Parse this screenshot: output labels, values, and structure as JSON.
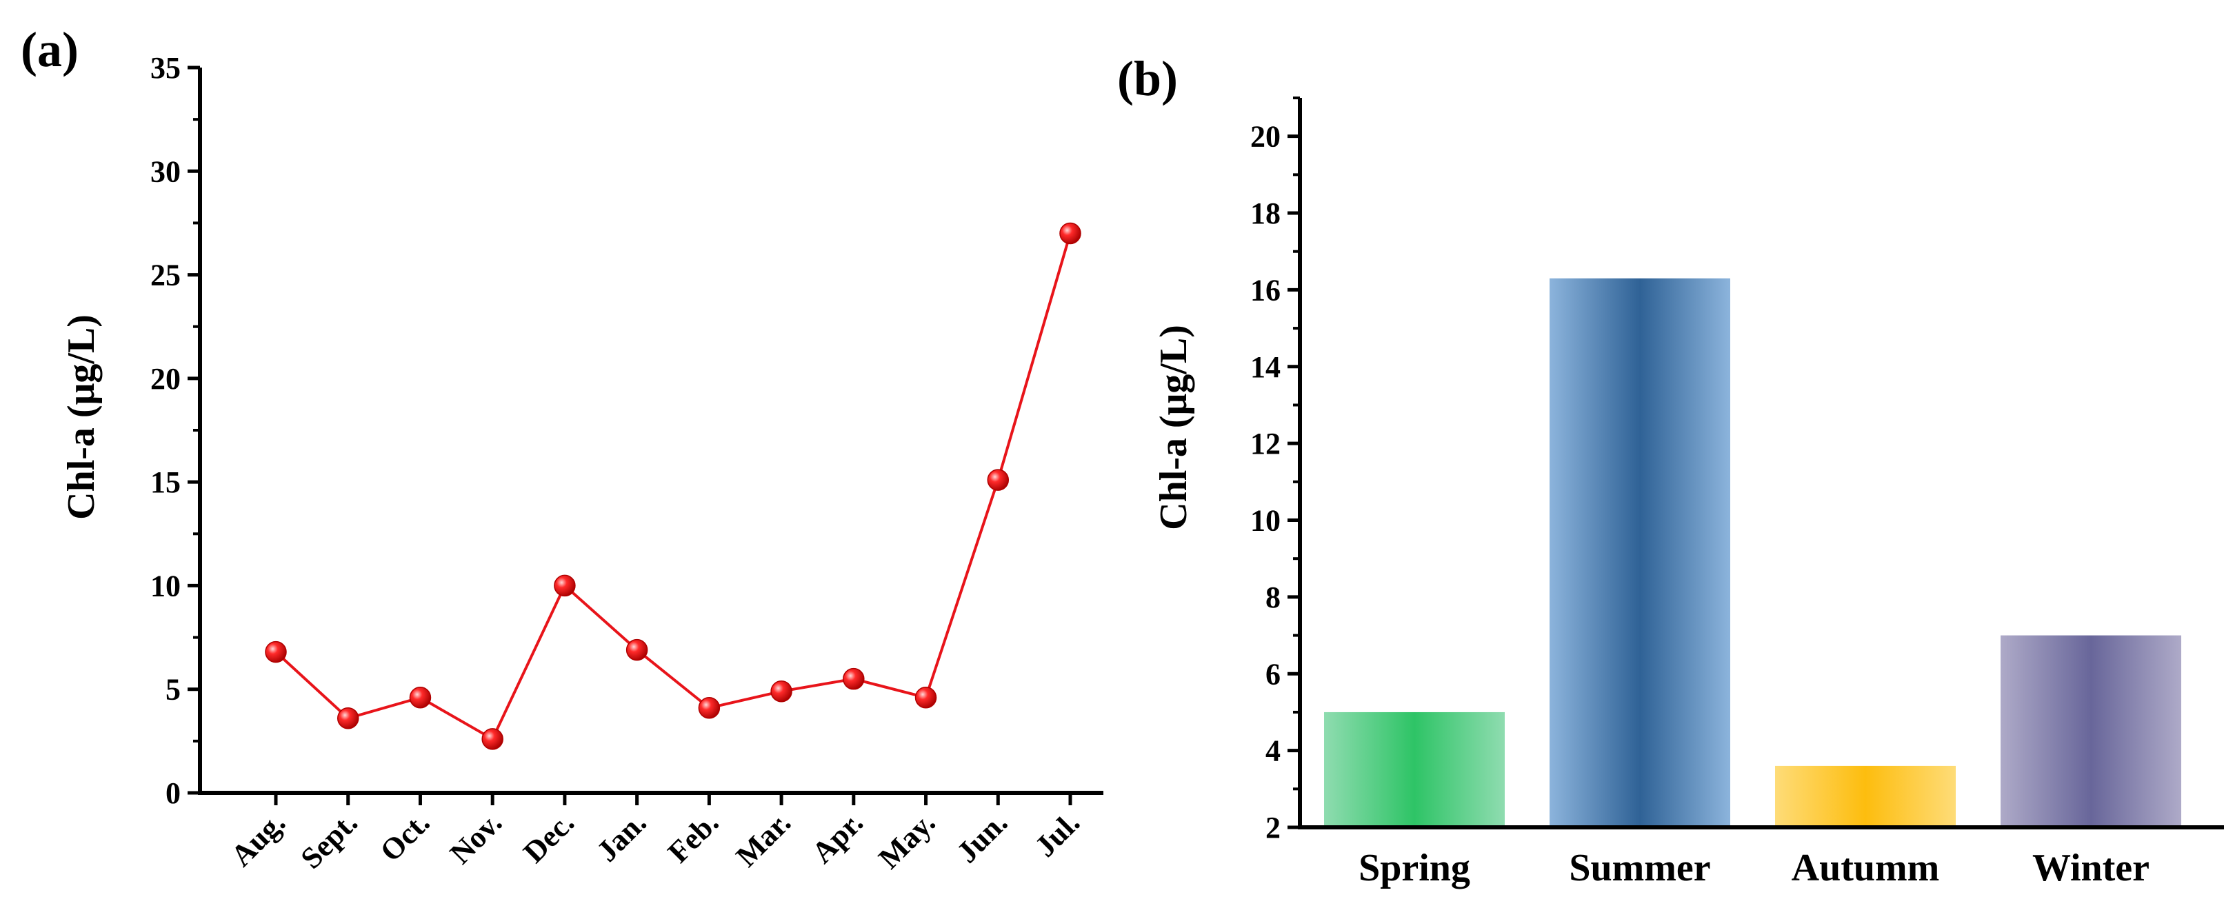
{
  "chart_data": [
    {
      "type": "line",
      "panel_label": "(a)",
      "title": "",
      "xlabel": "",
      "ylabel": "Chl-a (μg/L)",
      "ylim": [
        0,
        35
      ],
      "yticks": [
        "0",
        "5",
        "10",
        "15",
        "20",
        "25",
        "30",
        "35"
      ],
      "yticks_values": [
        0,
        5,
        10,
        15,
        20,
        25,
        30,
        35
      ],
      "categories": [
        "Aug.",
        "Sept.",
        "Oct.",
        "Nov.",
        "Dec.",
        "Jan.",
        "Feb.",
        "Mar.",
        "Apr.",
        "May.",
        "Jun.",
        "Jul."
      ],
      "values": [
        6.8,
        3.6,
        4.6,
        2.6,
        10.0,
        6.9,
        4.1,
        4.9,
        5.5,
        4.6,
        15.1,
        27.0
      ],
      "line_color": "#e8141a",
      "marker_color": "#e8141a",
      "grid": false,
      "legend": "none"
    },
    {
      "type": "bar",
      "panel_label": "(b)",
      "title": "",
      "xlabel": "",
      "ylabel": "Chl-a (μg/L)",
      "ylim": [
        2,
        21
      ],
      "yticks": [
        "2",
        "4",
        "6",
        "8",
        "10",
        "12",
        "14",
        "16",
        "18",
        "20"
      ],
      "yticks_values": [
        2,
        4,
        6,
        8,
        10,
        12,
        14,
        16,
        18,
        20
      ],
      "categories": [
        "Spring",
        "Summer",
        "Autumm",
        "Winter"
      ],
      "values": [
        5.0,
        16.3,
        3.6,
        7.0
      ],
      "bar_colors": [
        {
          "edge": "#8fdcb0",
          "center": "#2ec466"
        },
        {
          "edge": "#8cb4dc",
          "center": "#2f6296"
        },
        {
          "edge": "#fedc78",
          "center": "#fdbd0e"
        },
        {
          "edge": "#aeaac8",
          "center": "#68669a"
        }
      ],
      "grid": false,
      "legend": "none"
    }
  ]
}
